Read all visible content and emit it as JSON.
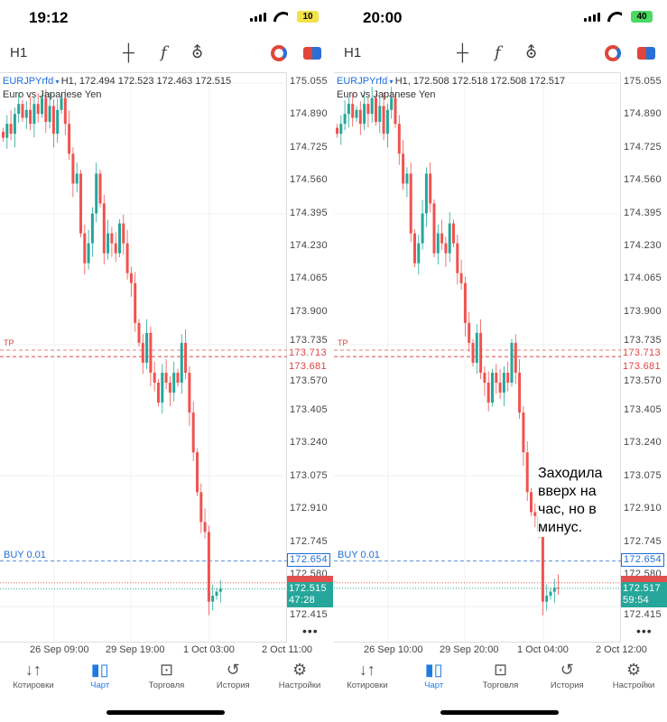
{
  "panes": [
    {
      "time": "19:12",
      "battery": "10",
      "battery_color": "#f2e24a",
      "timeframe": "H1",
      "symbol": "EURJPYrfd",
      "ohlc": "H1, 172.494 172.523 172.463 172.515",
      "description": "Euro vs Japanese Yen",
      "bid": "172.515",
      "countdown": "47:28",
      "buy_label": "BUY 0.01",
      "buy_price": "172.654",
      "tp1": "173.713",
      "tp2": "173.681",
      "tp_label": "TP",
      "dates": [
        "26 Sep 09:00",
        "29 Sep 19:00",
        "1 Oct 03:00",
        "2 Oct 11:00"
      ],
      "note": "",
      "closes": [
        174.78,
        174.85,
        174.8,
        174.9,
        174.95,
        174.88,
        174.92,
        174.85,
        174.95,
        174.9,
        174.98,
        174.86,
        174.94,
        174.8,
        174.92,
        174.98,
        174.85,
        174.7,
        174.55,
        174.6,
        174.3,
        174.15,
        174.25,
        174.4,
        174.6,
        174.45,
        174.2,
        174.3,
        174.25,
        174.2,
        174.35,
        174.25,
        174.1,
        174.05,
        173.85,
        173.75,
        173.65,
        173.8,
        173.6,
        173.55,
        173.45,
        173.6,
        173.55,
        173.5,
        173.6,
        173.55,
        173.75,
        173.6,
        173.4,
        173.2,
        173.0,
        172.85,
        172.8,
        172.45,
        172.48,
        172.5,
        172.515
      ]
    },
    {
      "time": "20:00",
      "battery": "40",
      "battery_color": "#4cd964",
      "timeframe": "H1",
      "symbol": "EURJPYrfd",
      "ohlc": "H1, 172.508 172.518 172.508 172.517",
      "description": "Euro vs Japanese Yen",
      "bid": "172.517",
      "countdown": "59:54",
      "buy_label": "BUY 0.01",
      "buy_price": "172.654",
      "tp1": "173.713",
      "tp2": "173.681",
      "tp_label": "TP",
      "dates": [
        "26 Sep 10:00",
        "29 Sep 20:00",
        "1 Oct 04:00",
        "2 Oct 12:00"
      ],
      "note": "Заходила вверх на час, но в минус.",
      "closes": [
        174.8,
        174.85,
        174.9,
        174.95,
        174.88,
        174.92,
        174.85,
        174.95,
        174.9,
        174.98,
        174.86,
        174.94,
        174.8,
        174.92,
        174.98,
        174.85,
        174.7,
        174.55,
        174.6,
        174.3,
        174.15,
        174.25,
        174.4,
        174.6,
        174.45,
        174.2,
        174.3,
        174.25,
        174.2,
        174.35,
        174.25,
        174.1,
        174.05,
        173.85,
        173.75,
        173.65,
        173.8,
        173.6,
        173.55,
        173.45,
        173.6,
        173.55,
        173.5,
        173.6,
        173.55,
        173.75,
        173.6,
        173.4,
        173.2,
        173.0,
        172.9,
        172.88,
        172.8,
        172.45,
        172.48,
        172.5,
        172.52,
        172.517
      ]
    }
  ],
  "axis_labels": [
    "175.055",
    "174.890",
    "174.725",
    "174.560",
    "174.395",
    "174.230",
    "174.065",
    "173.900",
    "173.735",
    "173.570",
    "173.405",
    "173.240",
    "173.075",
    "172.910",
    "172.745",
    "172.580",
    "172.415"
  ],
  "nav": [
    {
      "label": "Котировки",
      "icon": "↓↑"
    },
    {
      "label": "Чарт",
      "icon": "candles"
    },
    {
      "label": "Торговля",
      "icon": "trade-chart"
    },
    {
      "label": "История",
      "icon": "history"
    },
    {
      "label": "Настройки",
      "icon": "gear"
    }
  ],
  "colors": {
    "up": "#26a69a",
    "down": "#ef5350",
    "accent": "#1e7be0"
  }
}
